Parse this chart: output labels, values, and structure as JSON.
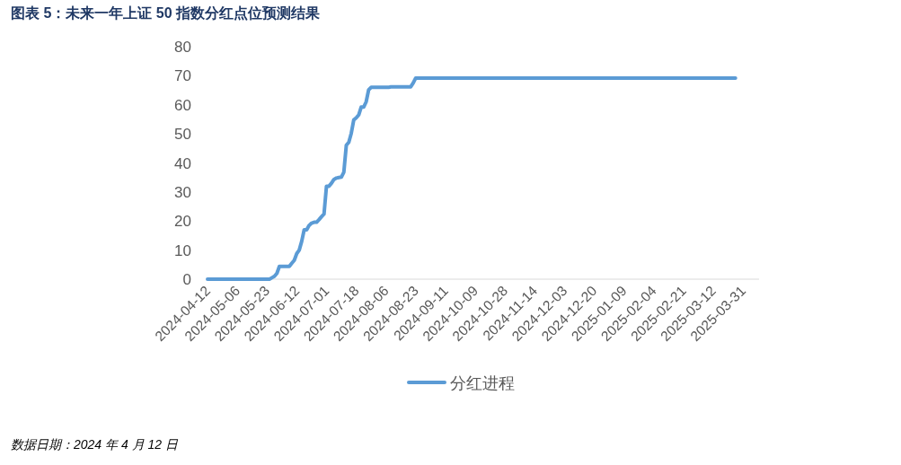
{
  "chart_data": {
    "type": "line",
    "title": "图表 5：未来一年上证 50 指数分红点位预测结果",
    "categories": [
      "2024-04-12",
      null,
      null,
      null,
      null,
      null,
      null,
      null,
      null,
      null,
      null,
      null,
      "2024-05-06",
      null,
      null,
      null,
      null,
      null,
      null,
      null,
      null,
      null,
      null,
      null,
      "2024-05-23",
      null,
      null,
      null,
      null,
      null,
      null,
      null,
      null,
      null,
      null,
      null,
      "2024-06-12",
      null,
      null,
      null,
      null,
      null,
      null,
      null,
      null,
      null,
      null,
      null,
      "2024-07-01",
      null,
      null,
      null,
      null,
      null,
      null,
      null,
      null,
      null,
      null,
      null,
      "2024-07-18",
      null,
      null,
      null,
      null,
      null,
      null,
      null,
      null,
      null,
      null,
      null,
      "2024-08-06",
      null,
      null,
      null,
      null,
      null,
      null,
      null,
      null,
      null,
      null,
      null,
      "2024-08-23",
      null,
      null,
      null,
      null,
      null,
      null,
      null,
      null,
      null,
      null,
      null,
      "2024-09-11",
      null,
      null,
      null,
      null,
      null,
      null,
      null,
      null,
      null,
      null,
      null,
      "2024-10-09",
      null,
      null,
      null,
      null,
      null,
      null,
      null,
      null,
      null,
      null,
      null,
      "2024-10-28",
      null,
      null,
      null,
      null,
      null,
      null,
      null,
      null,
      null,
      null,
      null,
      "2024-11-14",
      null,
      null,
      null,
      null,
      null,
      null,
      null,
      null,
      null,
      null,
      null,
      "2024-12-03",
      null,
      null,
      null,
      null,
      null,
      null,
      null,
      null,
      null,
      null,
      null,
      "2024-12-20",
      null,
      null,
      null,
      null,
      null,
      null,
      null,
      null,
      null,
      null,
      null,
      "2025-01-09",
      null,
      null,
      null,
      null,
      null,
      null,
      null,
      null,
      null,
      null,
      null,
      "2025-02-04",
      null,
      null,
      null,
      null,
      null,
      null,
      null,
      null,
      null,
      null,
      null,
      "2025-02-21",
      null,
      null,
      null,
      null,
      null,
      null,
      null,
      null,
      null,
      null,
      null,
      "2025-03-12",
      null,
      null,
      null,
      null,
      null,
      null,
      null,
      null,
      null,
      null,
      null,
      "2025-03-31"
    ],
    "series": [
      {
        "name": "分红进程",
        "color": "#5b9bd5",
        "values": [
          0,
          0,
          0,
          0,
          0,
          0,
          0,
          0,
          0,
          0,
          0,
          0,
          0,
          0,
          0,
          0,
          0,
          0,
          0,
          0,
          0,
          0,
          0,
          0,
          0,
          0,
          0.5,
          1,
          2,
          4.4,
          4.4,
          4.4,
          4.4,
          4.4,
          5.5,
          6.5,
          8.8,
          10,
          13,
          17,
          17,
          18.5,
          19.3,
          19.6,
          19.6,
          20.5,
          21.5,
          22.4,
          32,
          32,
          33,
          34.3,
          34.8,
          35,
          35.1,
          36.8,
          46.1,
          47.1,
          50.2,
          54.8,
          55.5,
          56.5,
          59.2,
          59.2,
          61,
          65.1,
          66,
          66,
          66,
          66,
          66,
          66,
          66,
          66,
          66.2,
          66.2,
          66.2,
          66.2,
          66.2,
          66.2,
          66.2,
          66.2,
          66.2,
          67.5,
          69.2,
          69.2,
          69.2,
          69.2,
          69.2,
          69.2,
          69.2,
          69.2,
          69.2,
          69.2,
          69.2,
          69.2,
          69.2,
          69.2,
          69.2,
          69.2,
          69.2,
          69.2,
          69.2,
          69.2,
          69.2,
          69.2,
          69.2,
          69.2,
          69.2,
          69.2,
          69.2,
          69.2,
          69.2,
          69.2,
          69.2,
          69.2,
          69.2,
          69.2,
          69.2,
          69.2,
          69.2,
          69.2,
          69.2,
          69.2,
          69.2,
          69.2,
          69.2,
          69.2,
          69.2,
          69.2,
          69.2,
          69.2,
          69.2,
          69.2,
          69.2,
          69.2,
          69.2,
          69.2,
          69.2,
          69.2,
          69.2,
          69.2,
          69.2,
          69.2,
          69.2,
          69.2,
          69.2,
          69.2,
          69.2,
          69.2,
          69.2,
          69.2,
          69.2,
          69.2,
          69.2,
          69.2,
          69.2,
          69.2,
          69.2,
          69.2,
          69.2,
          69.2,
          69.2,
          69.2,
          69.2,
          69.2,
          69.2,
          69.2,
          69.2,
          69.2,
          69.2,
          69.2,
          69.2,
          69.2,
          69.2,
          69.2,
          69.2,
          69.2,
          69.2,
          69.2,
          69.2,
          69.2,
          69.2,
          69.2,
          69.2,
          69.2,
          69.2,
          69.2,
          69.2,
          69.2,
          69.2,
          69.2,
          69.2,
          69.2,
          69.2,
          69.2,
          69.2,
          69.2,
          69.2,
          69.2,
          69.2,
          69.2,
          69.2,
          69.2,
          69.2,
          69.2,
          69.2,
          69.2,
          69.2,
          69.2,
          69.2,
          69.2,
          69.2,
          69.2,
          null,
          null,
          null
        ]
      }
    ],
    "ylim": [
      0,
      80
    ],
    "yticks": [
      0,
      10,
      20,
      30,
      40,
      50,
      60,
      70,
      80
    ],
    "grid": false,
    "legend": "bottom",
    "marker": "none",
    "line_style": "solid",
    "annotations": [
      "数据日期：2024 年 4 月 12 日"
    ]
  }
}
